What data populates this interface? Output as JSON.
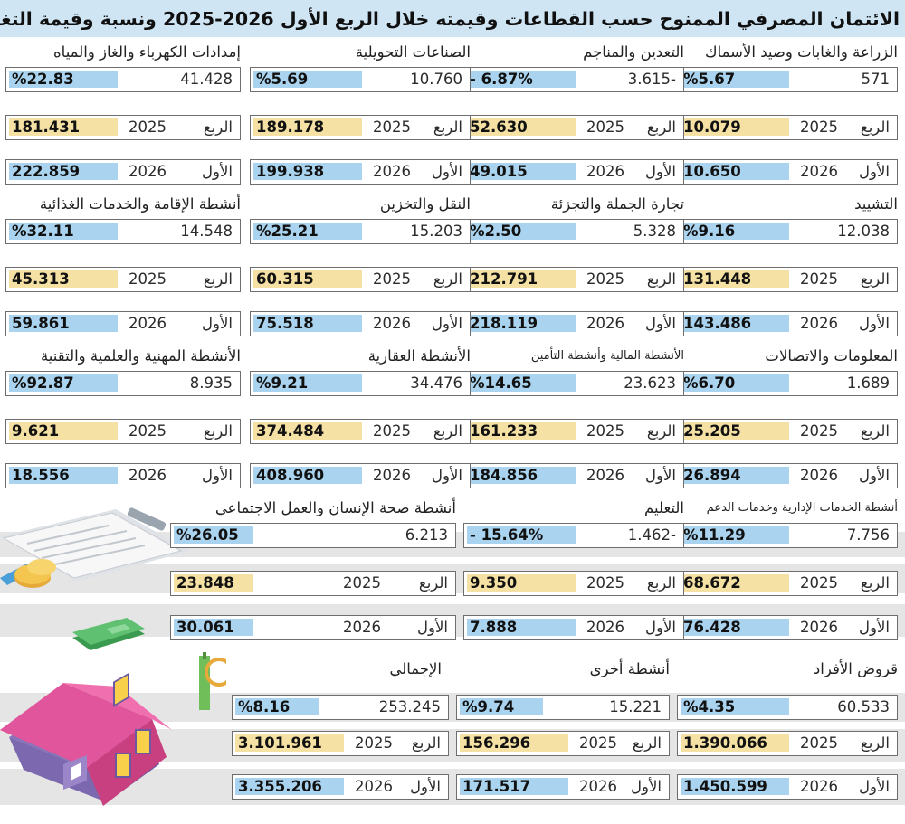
{
  "header": {
    "title": "الائتمان المصرفي الممنوح حسب القطاعات وقيمته خلال الربع الأول 2026-2025 ونسبة وقيمة التغيير بالمليون ريال"
  },
  "labels": {
    "q_label_2025": "الربع",
    "q_label_2026": "الأول",
    "year_2025": "2025",
    "year_2026": "2026"
  },
  "colors": {
    "header_bg": "#cfe5f4",
    "change_pill": "#a9d3ee",
    "q2025_pill": "#f4e1a3",
    "q2026_pill": "#a9d3ee",
    "band": "#e5e5e5"
  },
  "chart_data": {
    "type": "table",
    "title": "الائتمان المصرفي الممنوح حسب القطاعات وقيمته خلال الربع الأول 2026-2025 ونسبة وقيمة التغيير بالمليون ريال",
    "columns": [
      "sector",
      "change_value",
      "change_pct",
      "q1_2025",
      "q1_2026"
    ],
    "rows": [
      {
        "sector": "الزراعة والغابات وصيد الأسماك",
        "change_value": "571",
        "change_pct": "%5.67",
        "q1_2025": "10.079",
        "q1_2026": "10.650"
      },
      {
        "sector": "التعدين والمناجم",
        "change_value": "3.615-",
        "change_pct": "- 6.87%",
        "q1_2025": "52.630",
        "q1_2026": "49.015"
      },
      {
        "sector": "الصناعات التحويلية",
        "change_value": "10.760",
        "change_pct": "%5.69",
        "q1_2025": "189.178",
        "q1_2026": "199.938"
      },
      {
        "sector": "إمدادات الكهرباء والغاز والمياه",
        "change_value": "41.428",
        "change_pct": "%22.83",
        "q1_2025": "181.431",
        "q1_2026": "222.859"
      },
      {
        "sector": "التشييد",
        "change_value": "12.038",
        "change_pct": "%9.16",
        "q1_2025": "131.448",
        "q1_2026": "143.486"
      },
      {
        "sector": "تجارة الجملة والتجزئة",
        "change_value": "5.328",
        "change_pct": "%2.50",
        "q1_2025": "212.791",
        "q1_2026": "218.119"
      },
      {
        "sector": "النقل والتخزين",
        "change_value": "15.203",
        "change_pct": "%25.21",
        "q1_2025": "60.315",
        "q1_2026": "75.518"
      },
      {
        "sector": "أنشطة الإقامة والخدمات الغذائية",
        "change_value": "14.548",
        "change_pct": "%32.11",
        "q1_2025": "45.313",
        "q1_2026": "59.861"
      },
      {
        "sector": "المعلومات والاتصالات",
        "change_value": "1.689",
        "change_pct": "%6.70",
        "q1_2025": "25.205",
        "q1_2026": "26.894"
      },
      {
        "sector": "الأنشطة المالية وأنشطة التأمين",
        "change_value": "23.623",
        "change_pct": "%14.65",
        "q1_2025": "161.233",
        "q1_2026": "184.856"
      },
      {
        "sector": "الأنشطة العقارية",
        "change_value": "34.476",
        "change_pct": "%9.21",
        "q1_2025": "374.484",
        "q1_2026": "408.960"
      },
      {
        "sector": "الأنشطة المهنية والعلمية والتقنية",
        "change_value": "8.935",
        "change_pct": "%92.87",
        "q1_2025": "9.621",
        "q1_2026": "18.556"
      },
      {
        "sector": "أنشطة الخدمات الإدارية وخدمات الدعم",
        "change_value": "7.756",
        "change_pct": "%11.29",
        "q1_2025": "68.672",
        "q1_2026": "76.428"
      },
      {
        "sector": "التعليم",
        "change_value": "1.462-",
        "change_pct": "- 15.64%",
        "q1_2025": "9.350",
        "q1_2026": "7.888"
      },
      {
        "sector": "أنشطة صحة الإنسان والعمل الاجتماعي",
        "change_value": "6.213",
        "change_pct": "%26.05",
        "q1_2025": "23.848",
        "q1_2026": "30.061"
      },
      {
        "sector": "قروض الأفراد",
        "change_value": "60.533",
        "change_pct": "%4.35",
        "q1_2025": "1.390.066",
        "q1_2026": "1.450.599"
      },
      {
        "sector": "أنشطة أخرى",
        "change_value": "15.221",
        "change_pct": "%9.74",
        "q1_2025": "156.296",
        "q1_2026": "171.517"
      },
      {
        "sector": "الإجمالي",
        "change_value": "253.245",
        "change_pct": "%8.16",
        "q1_2025": "3.101.961",
        "q1_2026": "3.355.206"
      }
    ]
  }
}
